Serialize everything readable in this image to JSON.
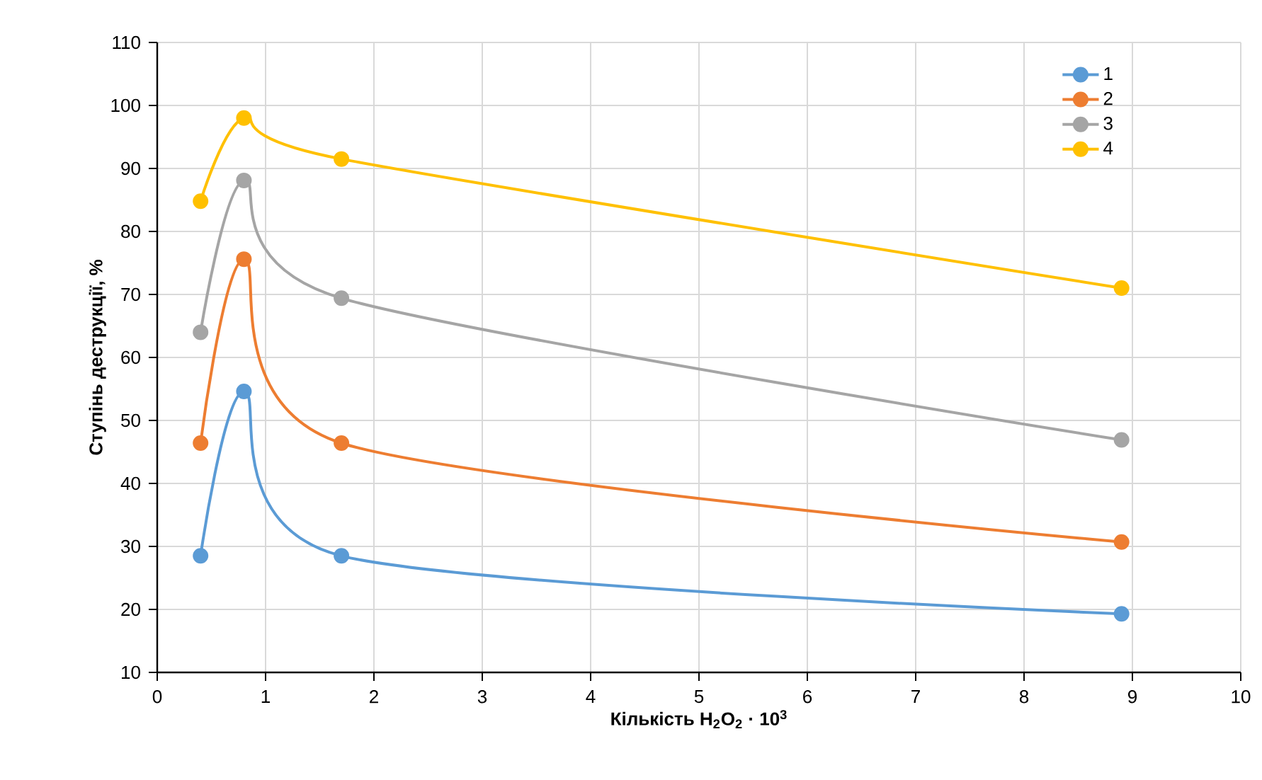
{
  "chart_data": {
    "type": "line",
    "xlabel": "**Кількість H$_{2}$O$_{2}$ · 10$^{3}$**",
    "ylabel": "**Ступінь деструкції, %**",
    "xlim": [
      0,
      10
    ],
    "xticks": [
      0,
      1,
      2,
      3,
      4,
      5,
      6,
      7,
      8,
      9,
      10
    ],
    "ylim": [
      10,
      110
    ],
    "yticks": [
      10,
      20,
      30,
      40,
      50,
      60,
      70,
      80,
      90,
      100,
      110
    ],
    "grid": true,
    "legend": "top right",
    "marker": "circle",
    "line_style": "solid",
    "series": [
      {
        "name": "1",
        "color": "#5b9bd5",
        "x": [
          0.4,
          0.8,
          1.7,
          8.9
        ],
        "values": [
          28.5,
          54.6,
          28.5,
          19.3
        ]
      },
      {
        "name": "2",
        "color": "#ed7d31",
        "x": [
          0.4,
          0.8,
          1.7,
          8.9
        ],
        "values": [
          46.4,
          75.6,
          46.4,
          30.7
        ]
      },
      {
        "name": "3",
        "color": "#a5a5a5",
        "x": [
          0.4,
          0.8,
          1.7,
          8.9
        ],
        "values": [
          64.0,
          88.1,
          69.4,
          46.9
        ]
      },
      {
        "name": "4",
        "color": "#ffc000",
        "x": [
          0.4,
          0.8,
          1.7,
          8.9
        ],
        "values": [
          84.8,
          98.0,
          91.5,
          71.0
        ]
      }
    ]
  }
}
